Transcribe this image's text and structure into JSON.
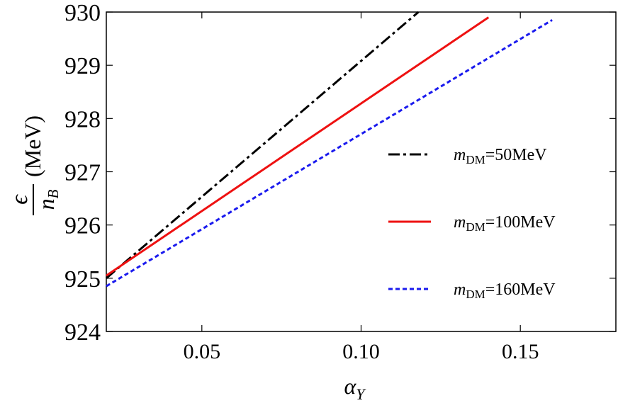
{
  "chart_data": {
    "type": "line",
    "xlabel": {
      "symbol": "α",
      "subscript": "Y"
    },
    "ylabel": {
      "numerator": "ϵ",
      "denominator": "n",
      "denominator_sub": "B",
      "unit": "(MeV)"
    },
    "xlim": [
      0.02,
      0.18
    ],
    "ylim": [
      924,
      930
    ],
    "xticks": [
      {
        "value": 0.05,
        "label": "0.05"
      },
      {
        "value": 0.1,
        "label": "0.10"
      },
      {
        "value": 0.15,
        "label": "0.15"
      }
    ],
    "yticks": [
      {
        "value": 924,
        "label": "924"
      },
      {
        "value": 925,
        "label": "925"
      },
      {
        "value": 926,
        "label": "926"
      },
      {
        "value": 927,
        "label": "927"
      },
      {
        "value": 928,
        "label": "928"
      },
      {
        "value": 929,
        "label": "929"
      },
      {
        "value": 930,
        "label": "930"
      }
    ],
    "series": [
      {
        "name": {
          "prefix": "m",
          "sub": "DM",
          "suffix": "=50MeV"
        },
        "color": "#000000",
        "dash": "dash-dot",
        "points": [
          [
            0.02,
            925.0
          ],
          [
            0.118,
            930.0
          ]
        ]
      },
      {
        "name": {
          "prefix": "m",
          "sub": "DM",
          "suffix": "=100MeV"
        },
        "color": "#ee1111",
        "dash": "solid",
        "points": [
          [
            0.02,
            925.05
          ],
          [
            0.14,
            929.9
          ]
        ]
      },
      {
        "name": {
          "prefix": "m",
          "sub": "DM",
          "suffix": "=160MeV"
        },
        "color": "#1a1aee",
        "dash": "dotted",
        "points": [
          [
            0.02,
            924.85
          ],
          [
            0.16,
            929.85
          ]
        ]
      }
    ],
    "legend": "right"
  }
}
